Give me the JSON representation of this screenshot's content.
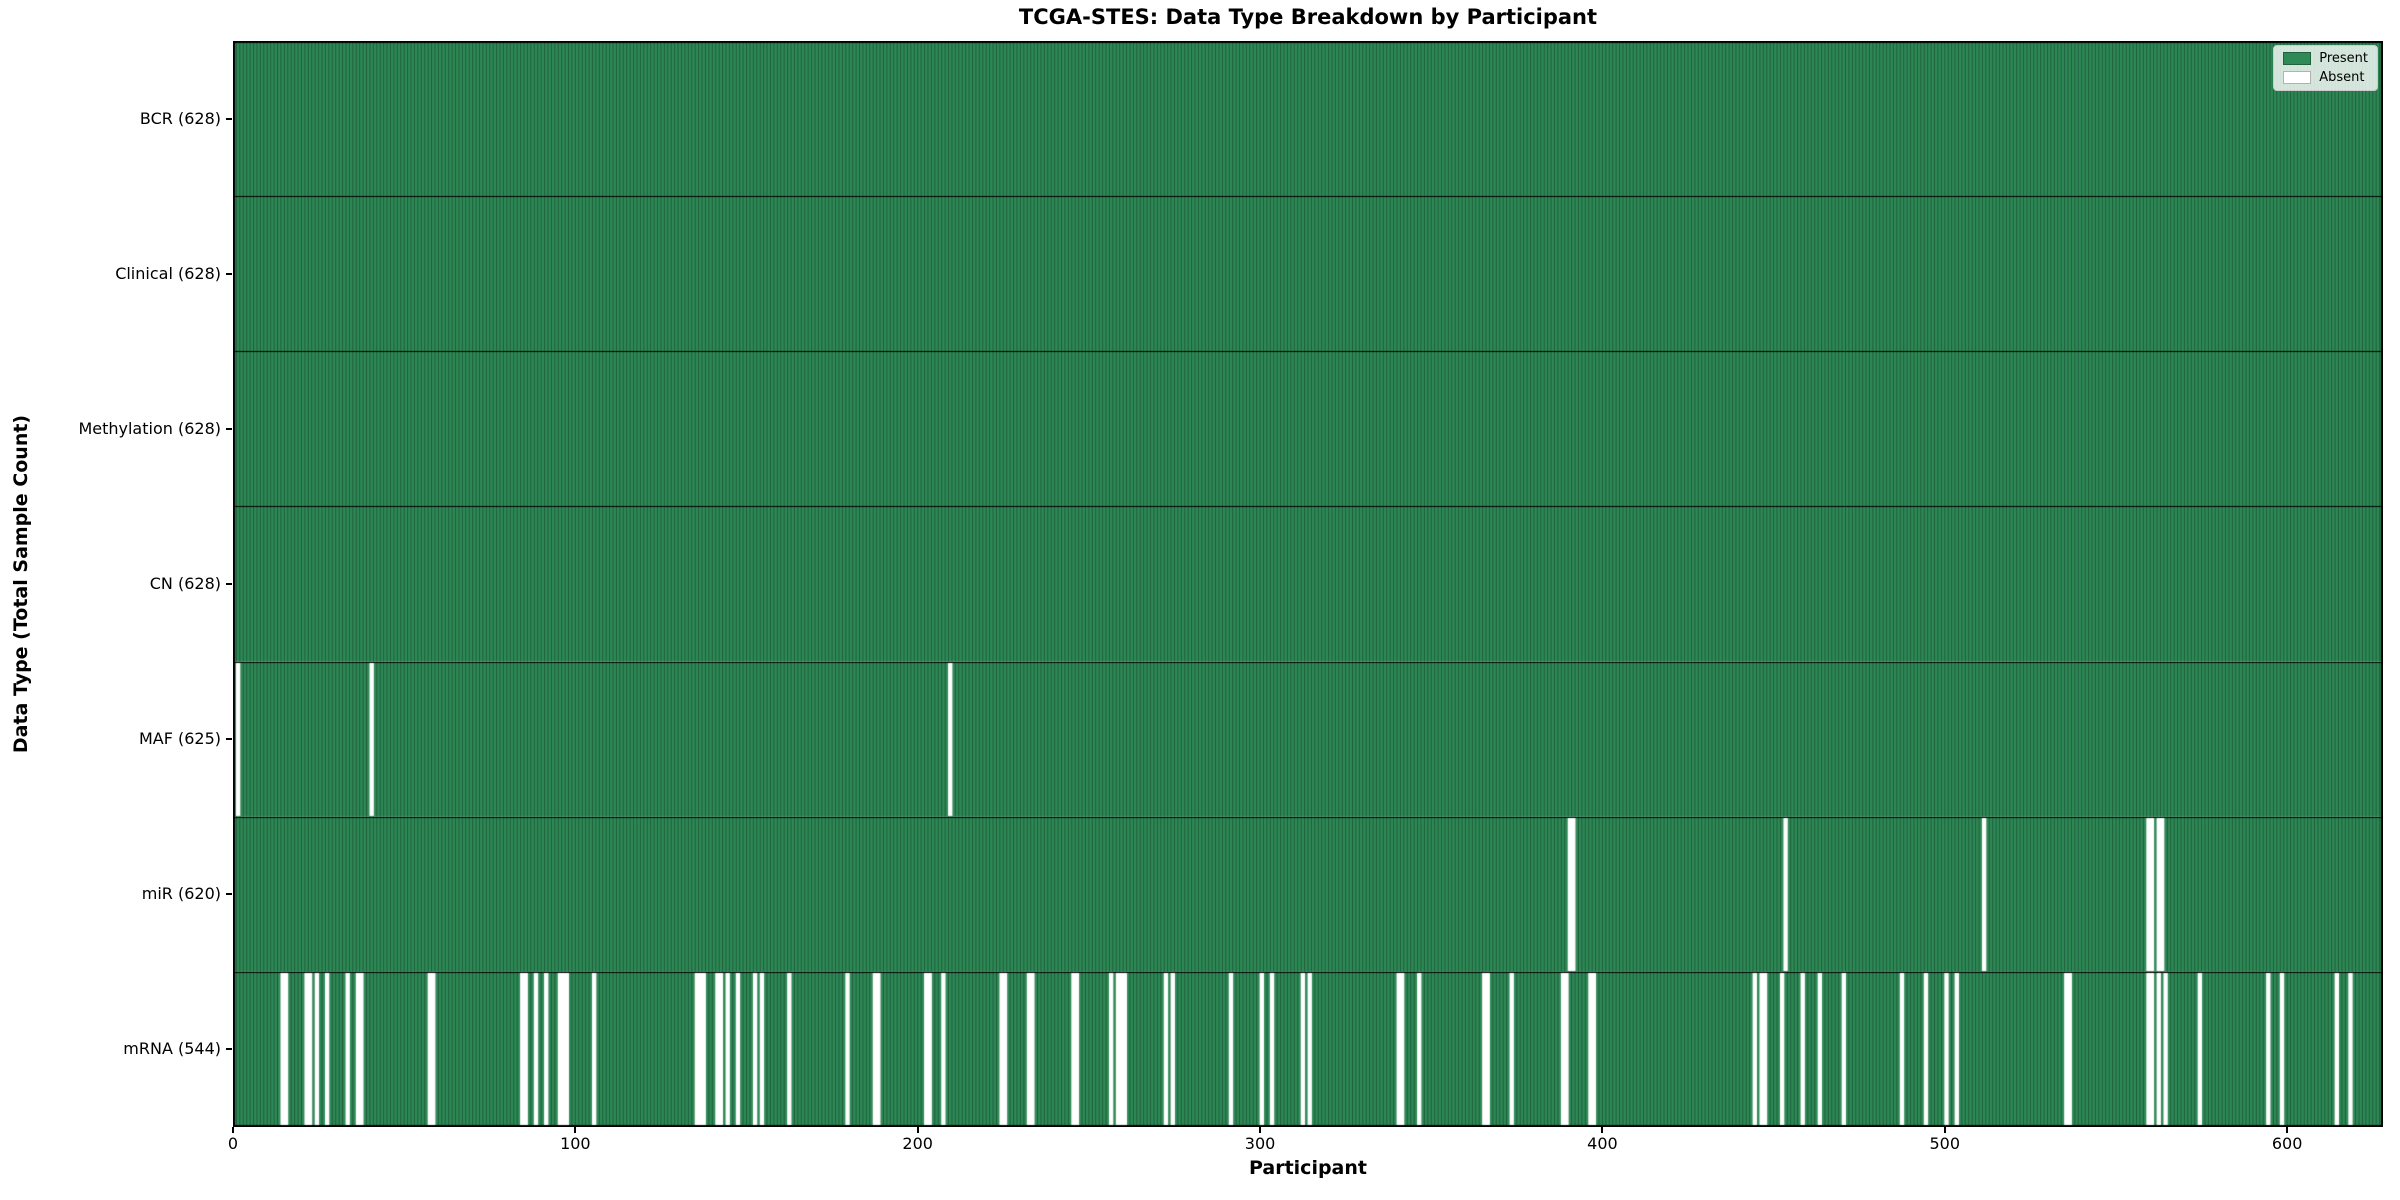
{
  "chart_data": {
    "type": "heatmap",
    "title": "TCGA-STES: Data Type Breakdown by Participant",
    "xlabel": "Participant",
    "ylabel": "Data Type (Total Sample Count)",
    "n_participants": 628,
    "x_ticks": [
      0,
      100,
      200,
      300,
      400,
      500,
      600
    ],
    "xlim": [
      0,
      628
    ],
    "grid": false,
    "legend_position": "upper right",
    "legend_items": [
      {
        "label": "Present",
        "color": "#2e8b57"
      },
      {
        "label": "Absent",
        "color": "#ffffff"
      }
    ],
    "colors": {
      "present": "#2e8b57",
      "absent": "#ffffff",
      "bar_edge": "rgba(0,0,0,0.45)",
      "row_divider": "#000000",
      "spine": "#000000"
    },
    "rows": [
      {
        "name": "BCR",
        "total": 628,
        "label": "BCR (628)",
        "absent": []
      },
      {
        "name": "Clinical",
        "total": 628,
        "label": "Clinical (628)",
        "absent": []
      },
      {
        "name": "Methylation",
        "total": 628,
        "label": "Methylation (628)",
        "absent": []
      },
      {
        "name": "CN",
        "total": 628,
        "label": "CN (628)",
        "absent": []
      },
      {
        "name": "MAF",
        "total": 625,
        "label": "MAF (625)",
        "absent": [
          1,
          40,
          209
        ]
      },
      {
        "name": "miR",
        "total": 620,
        "label": "miR (620)",
        "absent": [
          390,
          391,
          453,
          511,
          559,
          560,
          562,
          563
        ]
      },
      {
        "name": "mRNA",
        "total": 544,
        "label": "mRNA (544)",
        "absent": [
          14,
          15,
          21,
          22,
          24,
          27,
          33,
          36,
          37,
          57,
          58,
          84,
          85,
          88,
          91,
          95,
          96,
          97,
          105,
          135,
          136,
          137,
          141,
          142,
          144,
          147,
          152,
          154,
          162,
          179,
          187,
          188,
          202,
          203,
          207,
          224,
          225,
          232,
          233,
          245,
          246,
          256,
          258,
          259,
          260,
          272,
          274,
          291,
          300,
          303,
          312,
          314,
          340,
          341,
          346,
          365,
          366,
          373,
          388,
          389,
          396,
          397,
          444,
          446,
          447,
          452,
          458,
          463,
          470,
          487,
          494,
          500,
          503,
          535,
          536,
          559,
          560,
          562,
          564,
          574,
          594,
          598,
          614,
          618
        ]
      }
    ]
  }
}
